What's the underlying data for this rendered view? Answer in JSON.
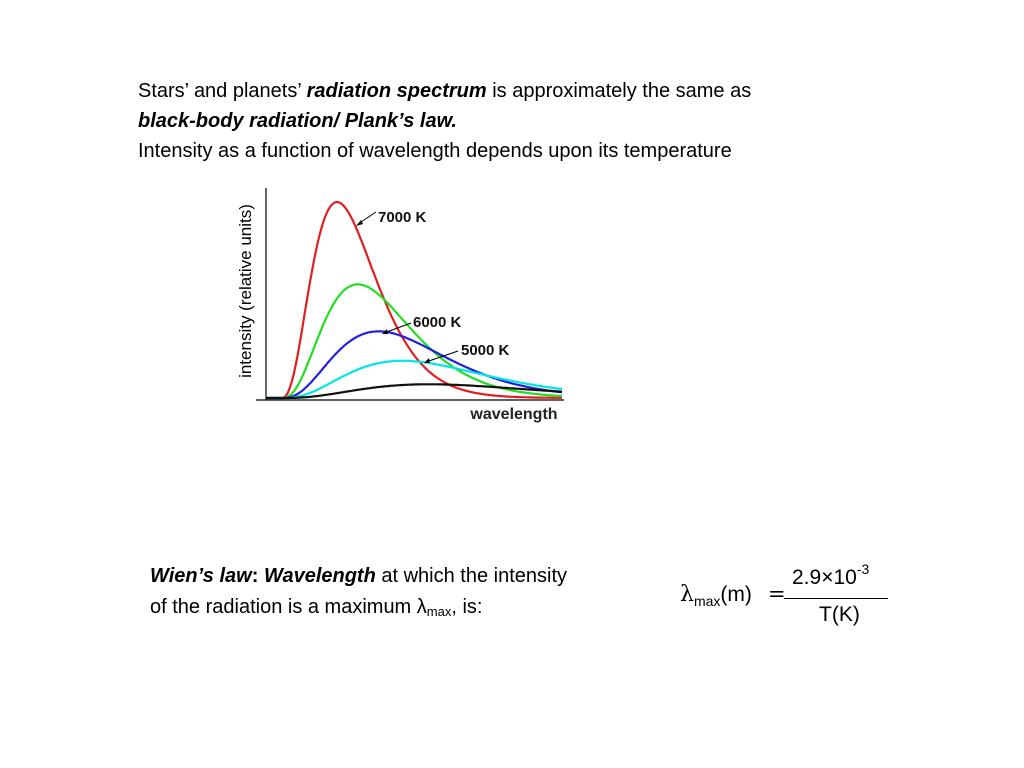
{
  "intro": {
    "line1_a": "Stars’ and planets’ ",
    "line1_b": "radiation spectrum",
    "line1_c": " is approximately the same as",
    "line2": "black-body radiation/ Plank’s law.",
    "line3": "Intensity as a function of wavelength depends upon its temperature"
  },
  "chart_data": {
    "type": "line",
    "title": "",
    "xlabel": "wavelength",
    "ylabel": "intensity (relative units)",
    "x_ticks": [],
    "y_ticks": [],
    "grid": false,
    "labels": [
      "7000 K",
      "6000 K",
      "5000 K"
    ],
    "series": [
      {
        "name": "7000 K",
        "color": "#e02020",
        "peak_relative": 1.0,
        "peak_x_relative": 0.24
      },
      {
        "name": "",
        "color": "#22dd22",
        "peak_relative": 0.58,
        "peak_x_relative": 0.31
      },
      {
        "name": "6000 K",
        "color": "#2222dd",
        "peak_relative": 0.34,
        "peak_x_relative": 0.38
      },
      {
        "name": "5000 K",
        "color": "#00e5e5",
        "peak_relative": 0.19,
        "peak_x_relative": 0.46
      },
      {
        "name": "",
        "color": "#111111",
        "peak_relative": 0.07,
        "peak_x_relative": 0.55
      }
    ]
  },
  "wien": {
    "term": "Wien’s law",
    "colon": ": ",
    "term2": "Wavelength",
    "text1": " at which the intensity",
    "text2": "of the radiation is a maximum λ",
    "sub": "max",
    "text3": ", is:"
  },
  "formula": {
    "lambda": "λ",
    "sub": "max",
    "unit": "(m)",
    "equals": "=",
    "numerator": "2.9×10",
    "exponent": "-3",
    "denominator": "T(K)"
  }
}
